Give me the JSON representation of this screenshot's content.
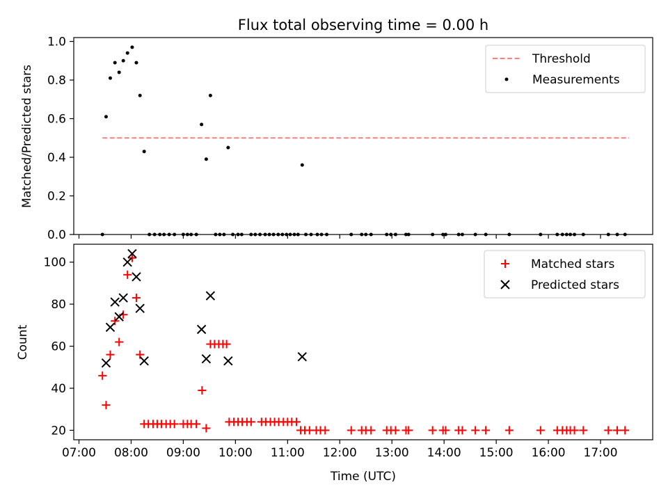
{
  "chart_data": [
    {
      "type": "scatter",
      "title": "Flux total observing time = 0.00 h",
      "xlabel": "",
      "ylabel": "Matched/Predicted stars",
      "xlim": [
        6.9,
        18.0
      ],
      "ylim": [
        0.0,
        1.02
      ],
      "yticks": [
        0.0,
        0.2,
        0.4,
        0.6,
        0.8,
        1.0
      ],
      "ytick_labels": [
        "0.0",
        "0.2",
        "0.4",
        "0.6",
        "0.8",
        "1.0"
      ],
      "legend_position": "top-right",
      "series": [
        {
          "name": "Threshold",
          "kind": "line",
          "style": "dashed",
          "color": "#ff7f7f",
          "x": [
            7.45,
            17.55
          ],
          "y": [
            0.5,
            0.5
          ]
        },
        {
          "name": "Measurements",
          "kind": "scatter",
          "color": "#000000",
          "points": [
            [
              7.45,
              0.0
            ],
            [
              7.52,
              0.61
            ],
            [
              7.6,
              0.81
            ],
            [
              7.69,
              0.89
            ],
            [
              7.77,
              0.84
            ],
            [
              7.85,
              0.9
            ],
            [
              7.93,
              0.94
            ],
            [
              8.02,
              0.97
            ],
            [
              8.1,
              0.89
            ],
            [
              8.17,
              0.72
            ],
            [
              8.25,
              0.43
            ],
            [
              8.35,
              0.0
            ],
            [
              8.45,
              0.0
            ],
            [
              8.55,
              0.0
            ],
            [
              8.63,
              0.0
            ],
            [
              8.73,
              0.0
            ],
            [
              8.83,
              0.0
            ],
            [
              9.0,
              0.0
            ],
            [
              9.08,
              0.0
            ],
            [
              9.15,
              0.0
            ],
            [
              9.25,
              0.0
            ],
            [
              9.35,
              0.57
            ],
            [
              9.44,
              0.39
            ],
            [
              9.52,
              0.72
            ],
            [
              9.62,
              0.0
            ],
            [
              9.7,
              0.0
            ],
            [
              9.78,
              0.0
            ],
            [
              9.86,
              0.45
            ],
            [
              9.95,
              0.0
            ],
            [
              10.05,
              0.0
            ],
            [
              10.12,
              0.0
            ],
            [
              10.3,
              0.0
            ],
            [
              10.38,
              0.0
            ],
            [
              10.47,
              0.0
            ],
            [
              10.57,
              0.0
            ],
            [
              10.65,
              0.0
            ],
            [
              10.73,
              0.0
            ],
            [
              10.82,
              0.0
            ],
            [
              10.9,
              0.0
            ],
            [
              10.98,
              0.0
            ],
            [
              11.05,
              0.0
            ],
            [
              11.13,
              0.0
            ],
            [
              11.2,
              0.0
            ],
            [
              11.28,
              0.36
            ],
            [
              11.35,
              0.0
            ],
            [
              11.45,
              0.0
            ],
            [
              11.57,
              0.0
            ],
            [
              11.65,
              0.0
            ],
            [
              11.75,
              0.0
            ],
            [
              12.22,
              0.0
            ],
            [
              12.42,
              0.0
            ],
            [
              12.5,
              0.0
            ],
            [
              12.6,
              0.0
            ],
            [
              12.9,
              0.0
            ],
            [
              12.98,
              0.0
            ],
            [
              13.07,
              0.0
            ],
            [
              13.27,
              0.0
            ],
            [
              13.32,
              0.0
            ],
            [
              13.78,
              0.0
            ],
            [
              13.98,
              0.0
            ],
            [
              14.03,
              0.0
            ],
            [
              14.28,
              0.0
            ],
            [
              14.35,
              0.0
            ],
            [
              14.6,
              0.0
            ],
            [
              14.8,
              0.0
            ],
            [
              15.25,
              0.0
            ],
            [
              15.85,
              0.0
            ],
            [
              16.17,
              0.0
            ],
            [
              16.27,
              0.0
            ],
            [
              16.35,
              0.0
            ],
            [
              16.42,
              0.0
            ],
            [
              16.5,
              0.0
            ],
            [
              16.67,
              0.0
            ],
            [
              17.15,
              0.0
            ],
            [
              17.32,
              0.0
            ],
            [
              17.47,
              0.0
            ]
          ]
        }
      ]
    },
    {
      "type": "scatter",
      "title": "",
      "xlabel": "Time (UTC)",
      "ylabel": "Count",
      "xlim": [
        6.9,
        18.0
      ],
      "ylim": [
        15.5,
        108.5
      ],
      "yticks": [
        20,
        40,
        60,
        80,
        100
      ],
      "ytick_labels": [
        "20",
        "40",
        "60",
        "80",
        "100"
      ],
      "xticks": [
        7,
        8,
        9,
        10,
        11,
        12,
        13,
        14,
        15,
        16,
        17
      ],
      "xtick_labels": [
        "07:00",
        "08:00",
        "09:00",
        "10:00",
        "11:00",
        "12:00",
        "13:00",
        "14:00",
        "15:00",
        "16:00",
        "17:00"
      ],
      "legend_position": "top-right",
      "series": [
        {
          "name": "Matched stars",
          "kind": "scatter",
          "marker": "+",
          "color": "#ff0000",
          "points": [
            [
              7.45,
              46
            ],
            [
              7.52,
              32
            ],
            [
              7.6,
              56
            ],
            [
              7.69,
              72
            ],
            [
              7.77,
              62
            ],
            [
              7.85,
              75
            ],
            [
              7.93,
              94
            ],
            [
              8.02,
              102
            ],
            [
              8.1,
              83
            ],
            [
              8.17,
              56
            ],
            [
              8.25,
              23
            ],
            [
              8.33,
              23
            ],
            [
              8.42,
              23
            ],
            [
              8.5,
              23
            ],
            [
              8.58,
              23
            ],
            [
              8.67,
              23
            ],
            [
              8.75,
              23
            ],
            [
              8.83,
              23
            ],
            [
              9.0,
              23
            ],
            [
              9.08,
              23
            ],
            [
              9.15,
              23
            ],
            [
              9.25,
              23
            ],
            [
              9.36,
              39
            ],
            [
              9.44,
              21
            ],
            [
              9.52,
              61
            ],
            [
              9.6,
              61
            ],
            [
              9.68,
              61
            ],
            [
              9.76,
              61
            ],
            [
              9.83,
              61
            ],
            [
              9.88,
              24
            ],
            [
              9.97,
              24
            ],
            [
              10.05,
              24
            ],
            [
              10.13,
              24
            ],
            [
              10.22,
              24
            ],
            [
              10.3,
              24
            ],
            [
              10.5,
              24
            ],
            [
              10.58,
              24
            ],
            [
              10.67,
              24
            ],
            [
              10.75,
              24
            ],
            [
              10.83,
              24
            ],
            [
              10.92,
              24
            ],
            [
              11.0,
              24
            ],
            [
              11.08,
              24
            ],
            [
              11.17,
              24
            ],
            [
              11.25,
              20
            ],
            [
              11.33,
              20
            ],
            [
              11.42,
              20
            ],
            [
              11.55,
              20
            ],
            [
              11.63,
              20
            ],
            [
              11.72,
              20
            ],
            [
              12.22,
              20
            ],
            [
              12.42,
              20
            ],
            [
              12.5,
              20
            ],
            [
              12.6,
              20
            ],
            [
              12.9,
              20
            ],
            [
              12.98,
              20
            ],
            [
              13.07,
              20
            ],
            [
              13.27,
              20
            ],
            [
              13.32,
              20
            ],
            [
              13.78,
              20
            ],
            [
              13.98,
              20
            ],
            [
              14.03,
              20
            ],
            [
              14.28,
              20
            ],
            [
              14.35,
              20
            ],
            [
              14.6,
              20
            ],
            [
              14.8,
              20
            ],
            [
              15.25,
              20
            ],
            [
              15.85,
              20
            ],
            [
              16.17,
              20
            ],
            [
              16.27,
              20
            ],
            [
              16.35,
              20
            ],
            [
              16.42,
              20
            ],
            [
              16.5,
              20
            ],
            [
              16.67,
              20
            ],
            [
              17.15,
              20
            ],
            [
              17.32,
              20
            ],
            [
              17.47,
              20
            ]
          ]
        },
        {
          "name": "Predicted stars",
          "kind": "scatter",
          "marker": "x",
          "color": "#000000",
          "points": [
            [
              7.52,
              52
            ],
            [
              7.6,
              69
            ],
            [
              7.69,
              81
            ],
            [
              7.77,
              74
            ],
            [
              7.85,
              83
            ],
            [
              7.93,
              100
            ],
            [
              8.02,
              104
            ],
            [
              8.1,
              93
            ],
            [
              8.17,
              78
            ],
            [
              8.25,
              53
            ],
            [
              9.35,
              68
            ],
            [
              9.44,
              54
            ],
            [
              9.52,
              84
            ],
            [
              9.86,
              53
            ],
            [
              11.28,
              55
            ]
          ]
        }
      ]
    }
  ]
}
